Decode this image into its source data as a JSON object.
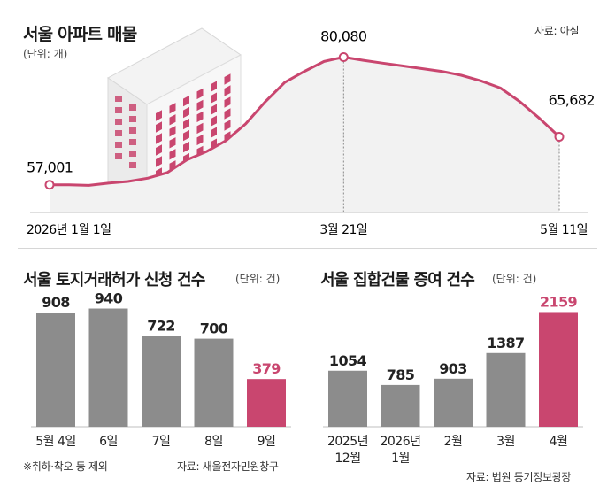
{
  "colors": {
    "accent": "#c9466f",
    "bar": "#8c8c8c",
    "area": "#f2f2f2",
    "text": "#222222"
  },
  "chart_data": [
    {
      "type": "area",
      "title": "서울 아파트 매물",
      "unit": "(단위: 개)",
      "source": "자료: 아실",
      "x_labels": [
        "2026년 1월 1일",
        "3월 21일",
        "5월 11일"
      ],
      "labels": [
        {
          "x": "2026년 1월 1일",
          "value": "57,001"
        },
        {
          "x": "3월 21일",
          "value": "80,080"
        },
        {
          "x": "5월 11일",
          "value": "65,682"
        }
      ],
      "x": [
        0,
        5,
        10,
        15,
        20,
        25,
        30,
        35,
        40,
        45,
        50,
        55,
        60,
        65,
        70,
        75,
        80,
        85,
        90,
        95,
        100,
        105,
        110,
        115,
        120,
        125,
        130
      ],
      "values": [
        57001,
        57000,
        56900,
        57300,
        57600,
        58200,
        59200,
        61500,
        63000,
        65000,
        68000,
        72000,
        75500,
        77500,
        79300,
        80080,
        79500,
        79000,
        78500,
        78000,
        77500,
        76800,
        75800,
        74500,
        72000,
        69000,
        65682
      ],
      "ylim": [
        52000,
        84000
      ]
    },
    {
      "type": "bar",
      "title": "서울 토지거래허가 신청 건수",
      "unit": "(단위: 건)",
      "categories": [
        "5월 4일",
        "6일",
        "7일",
        "8일",
        "9일"
      ],
      "values": [
        908,
        940,
        722,
        700,
        379
      ],
      "highlight": [
        4
      ],
      "note": "※취하·착오 등 제외",
      "source": "자료: 새울전자민원창구",
      "ylim": [
        0,
        1000
      ]
    },
    {
      "type": "bar",
      "title": "서울 집합건물 증여 건수",
      "unit": "(단위: 건)",
      "categories": [
        [
          "2025년",
          "12월"
        ],
        [
          "2026년",
          "1월"
        ],
        [
          "2월"
        ],
        [
          "3월"
        ],
        [
          "4월"
        ]
      ],
      "values": [
        1054,
        785,
        903,
        1387,
        2159
      ],
      "highlight": [
        4
      ],
      "source": "자료: 법원 등기정보광장",
      "ylim": [
        0,
        2300
      ]
    }
  ]
}
